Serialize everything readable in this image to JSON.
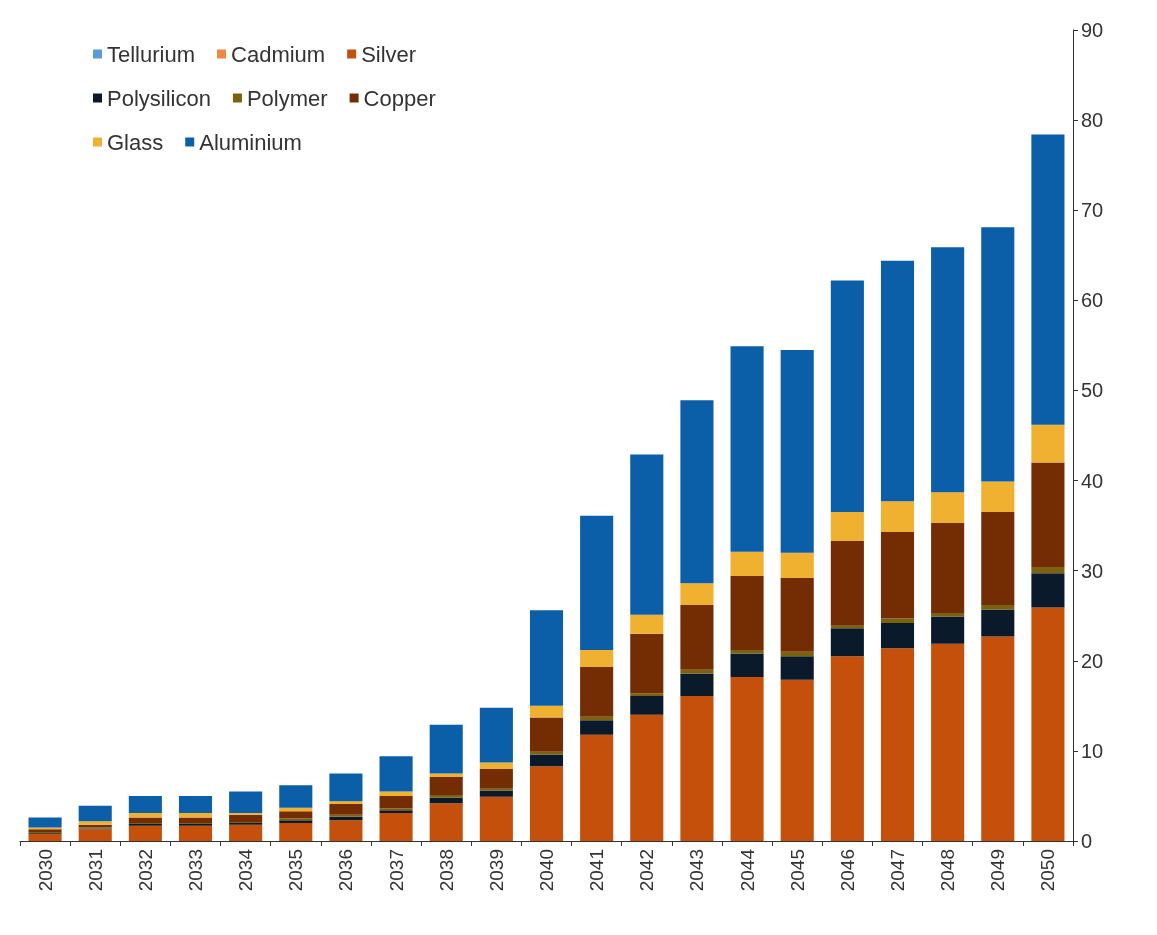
{
  "chart_data": {
    "type": "bar",
    "stacked": true,
    "categories": [
      "2030",
      "2031",
      "2032",
      "2033",
      "2034",
      "2035",
      "2036",
      "2037",
      "2038",
      "2039",
      "2040",
      "2041",
      "2042",
      "2043",
      "2044",
      "2045",
      "2046",
      "2047",
      "2048",
      "2049",
      "2050"
    ],
    "series": [
      {
        "name": "Tellurium",
        "color": "#5b9bd5",
        "values": [
          0,
          0,
          0,
          0,
          0,
          0,
          0,
          0,
          0,
          0,
          0,
          0,
          0,
          0,
          0,
          0,
          0,
          0,
          0,
          0,
          0
        ]
      },
      {
        "name": "Cadmium",
        "color": "#ed8a3f",
        "values": [
          0,
          0,
          0,
          0,
          0,
          0,
          0,
          0,
          0,
          0,
          0,
          0,
          0,
          0,
          0,
          0,
          0,
          0,
          0,
          0,
          0
        ]
      },
      {
        "name": "Silver",
        "color": "#c4500c",
        "values": [
          0.8,
          1.3,
          1.7,
          1.7,
          1.8,
          2.0,
          2.3,
          3.1,
          4.2,
          4.9,
          8.3,
          11.8,
          14.0,
          16.1,
          18.2,
          17.9,
          20.5,
          21.4,
          21.9,
          22.7,
          25.9
        ]
      },
      {
        "name": "Polysilicon",
        "color": "#0a1a2a",
        "values": [
          0.1,
          0.1,
          0.2,
          0.2,
          0.2,
          0.3,
          0.4,
          0.3,
          0.6,
          0.7,
          1.3,
          1.6,
          2.1,
          2.5,
          2.6,
          2.6,
          3.1,
          2.8,
          3.0,
          3.0,
          3.8
        ]
      },
      {
        "name": "Polymer",
        "color": "#7a6210",
        "values": [
          0.1,
          0.1,
          0.1,
          0.1,
          0.1,
          0.2,
          0.2,
          0.2,
          0.3,
          0.2,
          0.3,
          0.4,
          0.3,
          0.4,
          0.4,
          0.5,
          0.3,
          0.5,
          0.4,
          0.5,
          0.7
        ]
      },
      {
        "name": "Copper",
        "color": "#742c02",
        "values": [
          0.3,
          0.3,
          0.6,
          0.6,
          0.8,
          0.8,
          1.2,
          1.4,
          2.0,
          2.2,
          3.8,
          5.5,
          6.6,
          7.2,
          8.2,
          8.2,
          9.4,
          9.6,
          10.0,
          10.3,
          11.6
        ]
      },
      {
        "name": "Glass",
        "color": "#f0b030",
        "values": [
          0.2,
          0.4,
          0.5,
          0.5,
          0.2,
          0.4,
          0.3,
          0.5,
          0.4,
          0.7,
          1.3,
          1.9,
          2.1,
          2.4,
          2.7,
          2.8,
          3.2,
          3.4,
          3.4,
          3.4,
          4.2
        ]
      },
      {
        "name": "Aluminium",
        "color": "#0b5ea8",
        "values": [
          1.1,
          1.7,
          1.9,
          1.9,
          2.4,
          2.5,
          3.1,
          3.9,
          5.4,
          6.1,
          10.6,
          14.9,
          17.8,
          20.3,
          22.8,
          22.5,
          25.7,
          26.7,
          27.2,
          28.2,
          32.2
        ]
      }
    ],
    "ylim": [
      0,
      90
    ],
    "yticks": [
      0,
      10,
      20,
      30,
      40,
      50,
      60,
      70,
      80,
      90
    ],
    "grid": false,
    "legend": "top left"
  }
}
